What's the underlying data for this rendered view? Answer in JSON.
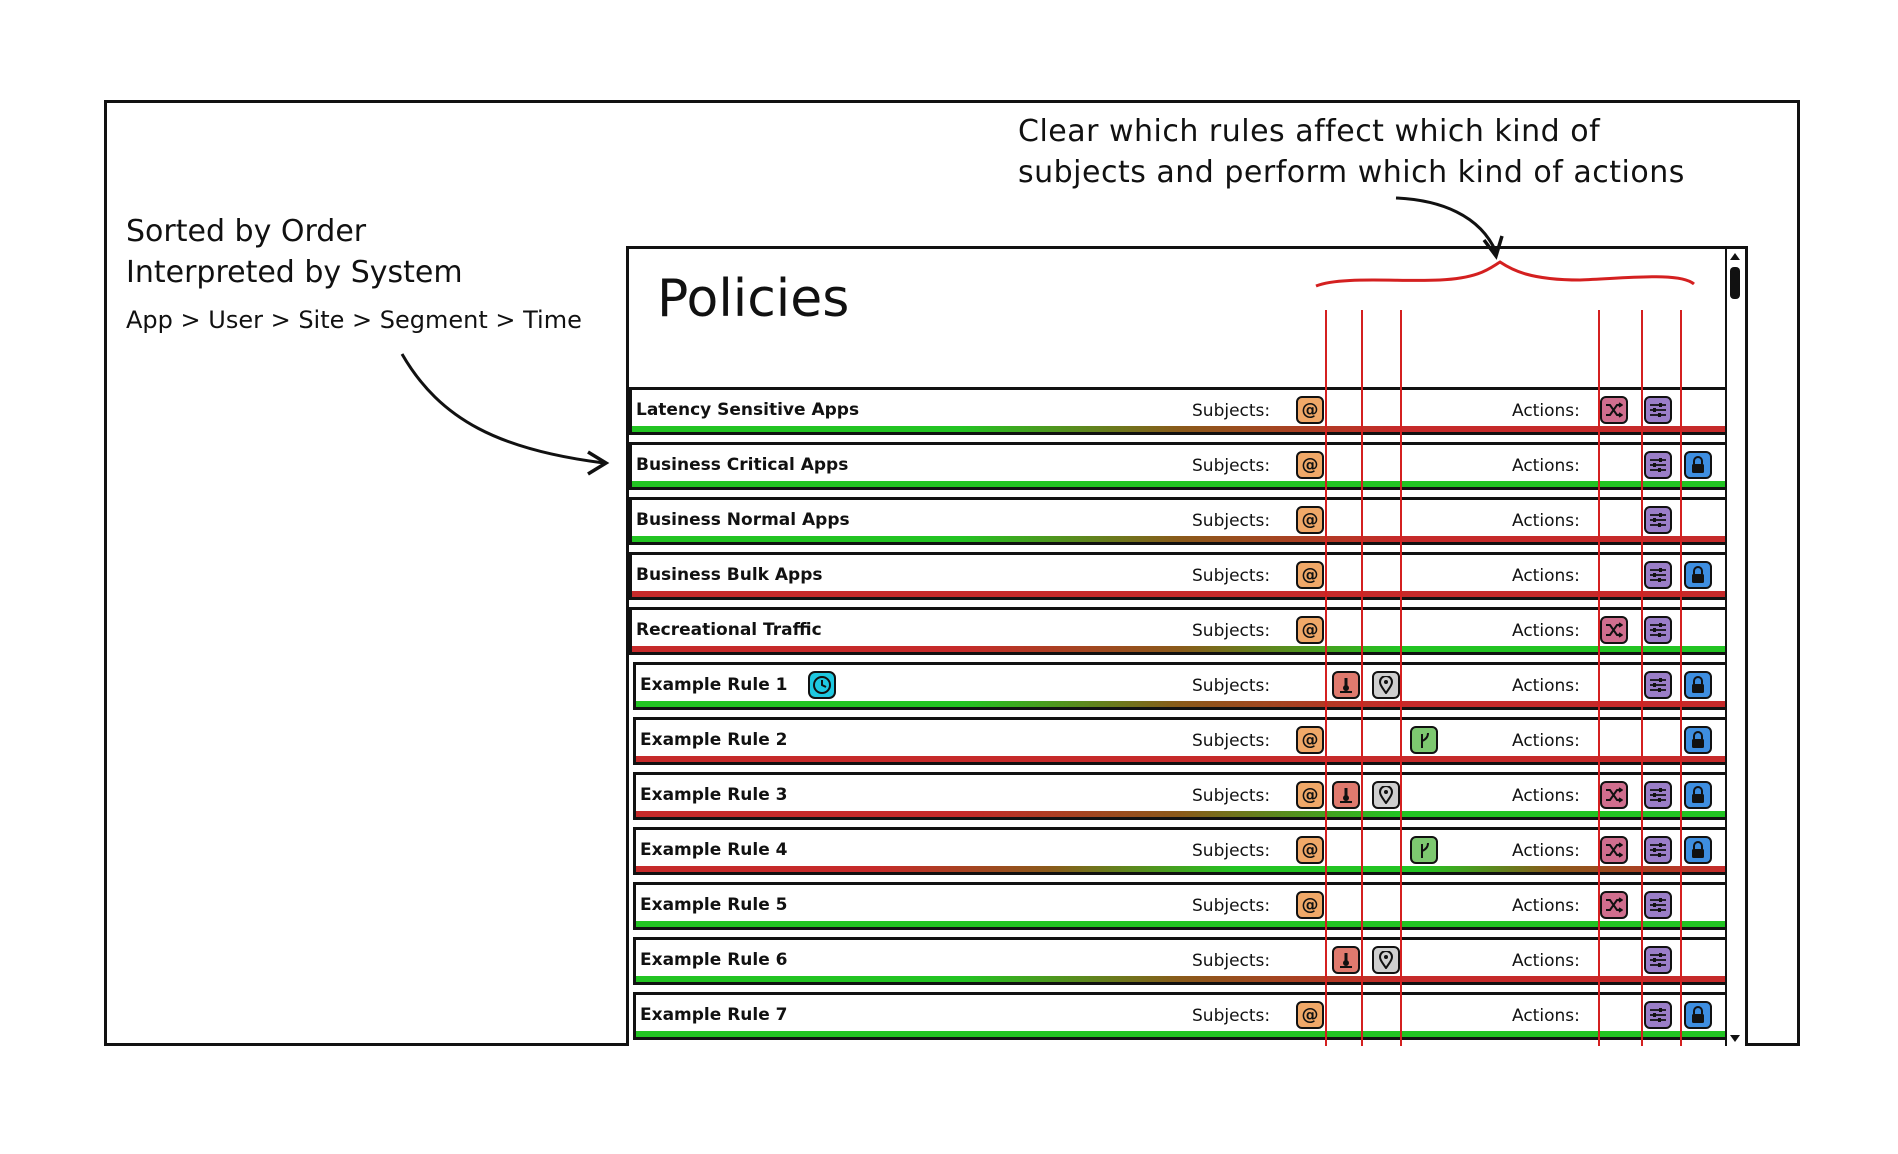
{
  "annotations": {
    "left_line_1": "Sorted by Order",
    "left_line_2": "Interpreted by System",
    "left_line_3": "App > User > Site > Segment > Time",
    "top_line_1": "Clear which rules affect which kind of",
    "top_line_2": "subjects and perform which kind of actions"
  },
  "panel": {
    "title": "Policies",
    "subjects_label": "Subjects:",
    "actions_label": "Actions:"
  },
  "policies": [
    {
      "name": "Latency Sensitive Apps",
      "subjects": [
        "at"
      ],
      "actions": [
        "shuffle",
        "sliders"
      ],
      "bar": "green-red"
    },
    {
      "name": "Business Critical Apps",
      "subjects": [
        "at"
      ],
      "actions": [
        "sliders",
        "lock"
      ],
      "bar": "green"
    },
    {
      "name": "Business Normal Apps",
      "subjects": [
        "at"
      ],
      "actions": [
        "sliders"
      ],
      "bar": "green-red"
    },
    {
      "name": "Business Bulk Apps",
      "subjects": [
        "at"
      ],
      "actions": [
        "sliders",
        "lock"
      ],
      "bar": "red"
    },
    {
      "name": "Recreational Traffic",
      "subjects": [
        "at"
      ],
      "actions": [
        "shuffle",
        "sliders"
      ],
      "bar": "red-green"
    },
    {
      "name": "Example Rule 1",
      "subjects": [
        "user",
        "pin"
      ],
      "actions": [
        "sliders",
        "lock"
      ],
      "bar": "green-red",
      "extra_icon": "clock"
    },
    {
      "name": "Example Rule 2",
      "subjects": [
        "at",
        "branch"
      ],
      "actions": [
        "lock"
      ],
      "bar": "red"
    },
    {
      "name": "Example Rule 3",
      "subjects": [
        "at",
        "user",
        "pin"
      ],
      "actions": [
        "shuffle",
        "sliders",
        "lock"
      ],
      "bar": "red-green"
    },
    {
      "name": "Example Rule 4",
      "subjects": [
        "at",
        "branch"
      ],
      "actions": [
        "shuffle",
        "sliders",
        "lock"
      ],
      "bar": "red-green-red"
    },
    {
      "name": "Example Rule 5",
      "subjects": [
        "at"
      ],
      "actions": [
        "shuffle",
        "sliders"
      ],
      "bar": "green"
    },
    {
      "name": "Example Rule 6",
      "subjects": [
        "user",
        "pin"
      ],
      "actions": [
        "sliders"
      ],
      "bar": "green-red"
    },
    {
      "name": "Example Rule 7",
      "subjects": [
        "at"
      ],
      "actions": [
        "sliders",
        "lock"
      ],
      "bar": "green"
    }
  ],
  "icons": {
    "at": "at-icon",
    "user": "user-icon",
    "pin": "location-pin-icon",
    "branch": "branch-icon",
    "shuffle": "shuffle-icon",
    "sliders": "sliders-icon",
    "lock": "lock-icon",
    "clock": "clock-icon"
  },
  "colors": {
    "annotation_red": "#d42020",
    "bar_green": "#22c422",
    "bar_red": "#c62a2a"
  }
}
